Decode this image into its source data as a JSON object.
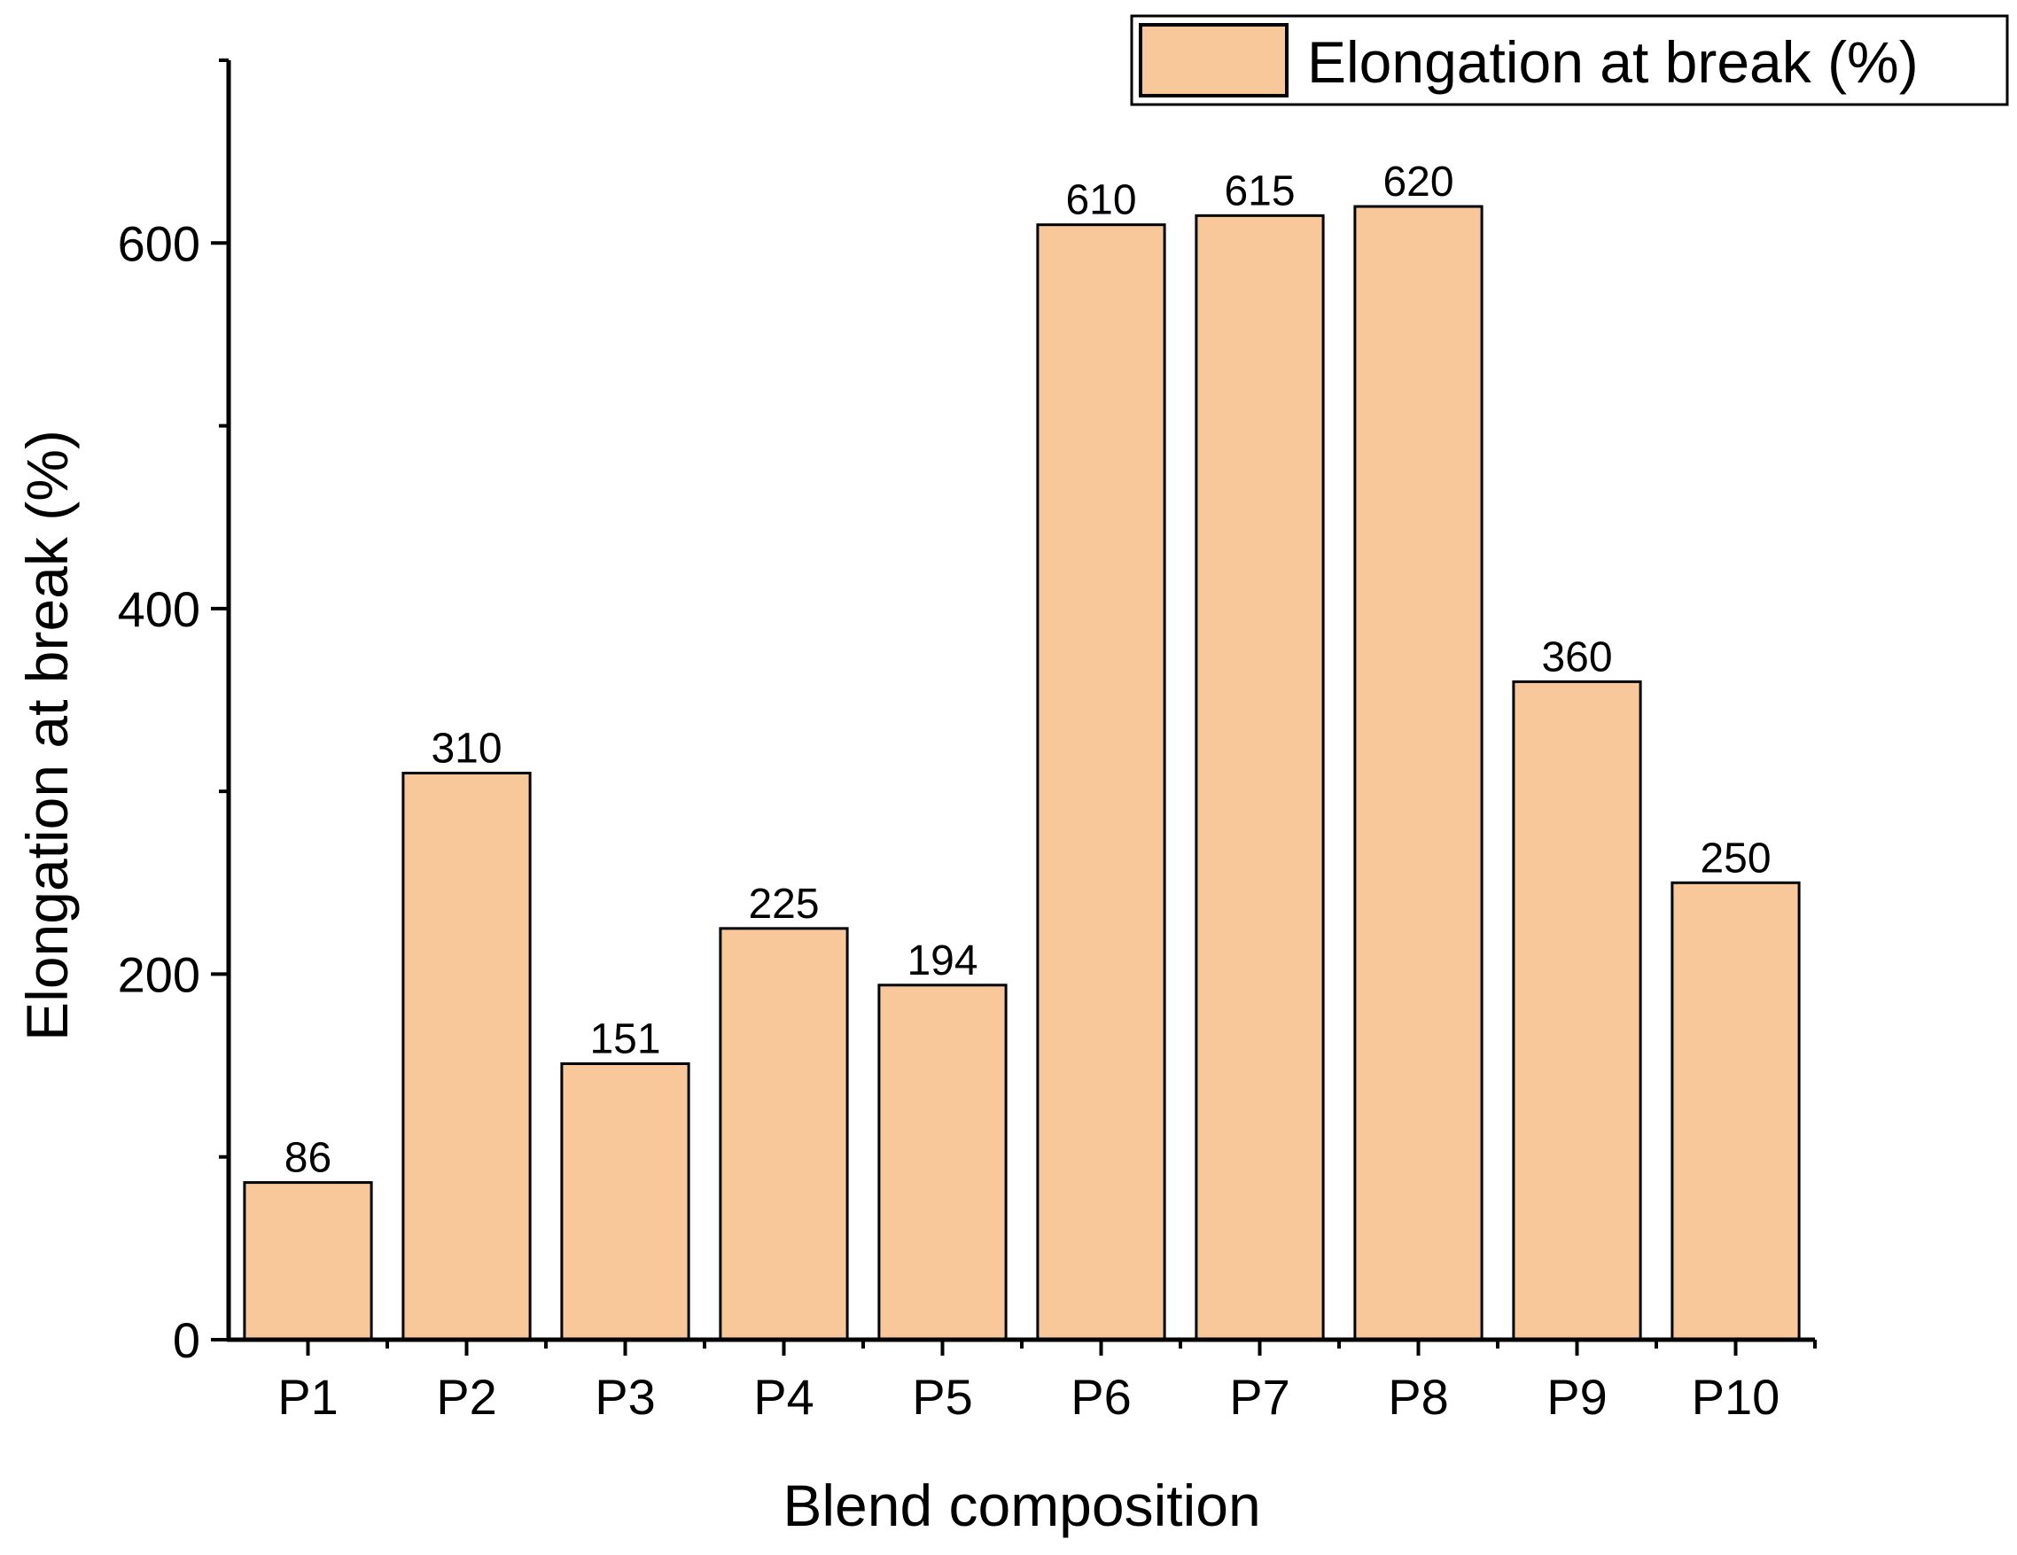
{
  "chart_data": {
    "type": "bar",
    "title": "",
    "xlabel": "Blend composition",
    "ylabel": "Elongation at break (%)",
    "categories": [
      "P1",
      "P2",
      "P3",
      "P4",
      "P5",
      "P6",
      "P7",
      "P8",
      "P9",
      "P10"
    ],
    "series": [
      {
        "name": "Elongation at break (%)",
        "values": [
          86,
          310,
          151,
          225,
          194,
          610,
          615,
          620,
          360,
          250
        ],
        "color": "#F9C89A"
      }
    ],
    "data_labels": [
      "86",
      "310",
      "151",
      "225",
      "194",
      "610",
      "615",
      "620",
      "360",
      "250"
    ],
    "ylim": [
      0,
      700
    ],
    "yticks": [
      0,
      200,
      400,
      600
    ],
    "ytick_labels": [
      "0",
      "200",
      "400",
      "600"
    ],
    "grid": false,
    "legend_position": "top-right",
    "bar_edge_color": "#000000",
    "axis_color": "#000000"
  }
}
